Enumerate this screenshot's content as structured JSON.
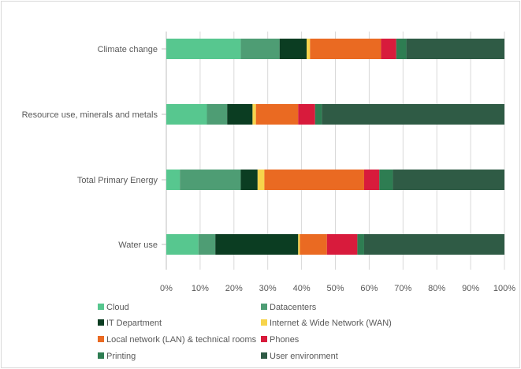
{
  "chart_data": {
    "type": "bar",
    "orientation": "horizontal",
    "stacked": "percent",
    "categories": [
      "Climate change",
      "Resource use, minerals and metals",
      "Total Primary Energy",
      "Water use"
    ],
    "series": [
      {
        "name": "Cloud",
        "color": "#57c78f",
        "values": [
          22,
          12,
          4,
          9.5
        ]
      },
      {
        "name": "Datacenters",
        "color": "#4e9d74",
        "values": [
          11.5,
          6,
          18,
          5
        ]
      },
      {
        "name": "IT Department",
        "color": "#0b3d22",
        "values": [
          8,
          7.5,
          5,
          24.5
        ]
      },
      {
        "name": "Internet & Wide Network (WAN)",
        "color": "#f7d44c",
        "values": [
          1,
          1,
          2,
          0.5
        ]
      },
      {
        "name": "Local network (LAN) & technical rooms",
        "color": "#ea6a22",
        "values": [
          21,
          12.5,
          29.5,
          8
        ]
      },
      {
        "name": "Phones",
        "color": "#d81b3c",
        "values": [
          4.5,
          5,
          4.5,
          9
        ]
      },
      {
        "name": "Printing",
        "color": "#2e7d52",
        "values": [
          3,
          2,
          4,
          2
        ]
      },
      {
        "name": "User environment",
        "color": "#2f5b45",
        "values": [
          29,
          54,
          33,
          41.5
        ]
      }
    ],
    "xlim": [
      0,
      100
    ],
    "xticks": [
      "0%",
      "10%",
      "20%",
      "30%",
      "40%",
      "50%",
      "60%",
      "70%",
      "80%",
      "90%",
      "100%"
    ],
    "title": "",
    "xlabel": "",
    "ylabel": "",
    "grid": "vertical",
    "legend_position": "bottom"
  }
}
